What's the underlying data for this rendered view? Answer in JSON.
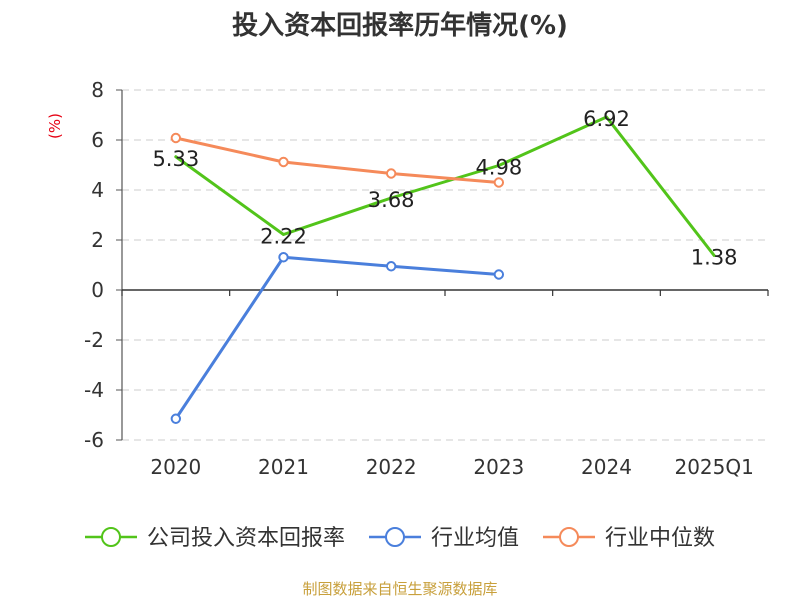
{
  "chart_data": {
    "type": "line",
    "title": "投入资本回报率历年情况(%)",
    "ylabel": "(%)",
    "xlabel": "",
    "categories": [
      "2020",
      "2021",
      "2022",
      "2023",
      "2024",
      "2025Q1"
    ],
    "ylim": [
      -6,
      8
    ],
    "yticks": [
      8,
      6,
      4,
      2,
      0,
      -2,
      -4,
      -6
    ],
    "grid": true,
    "legend_position": "bottom",
    "series": [
      {
        "name": "公司投入资本回报率",
        "color": "#52c41a",
        "values": [
          5.33,
          2.22,
          3.68,
          4.98,
          6.92,
          1.38
        ],
        "labels": [
          "5.33",
          "2.22",
          "3.68",
          "4.98",
          "6.92",
          "1.38"
        ],
        "show_markers": false
      },
      {
        "name": "行业均值",
        "color": "#4a7fdc",
        "values": [
          -5.15,
          1.31,
          0.95,
          0.62,
          null,
          null
        ],
        "show_markers": true
      },
      {
        "name": "行业中位数",
        "color": "#f58a5a",
        "values": [
          6.08,
          5.12,
          4.66,
          4.3,
          null,
          null
        ],
        "show_markers": true
      }
    ]
  },
  "source": "制图数据来自恒生聚源数据库"
}
